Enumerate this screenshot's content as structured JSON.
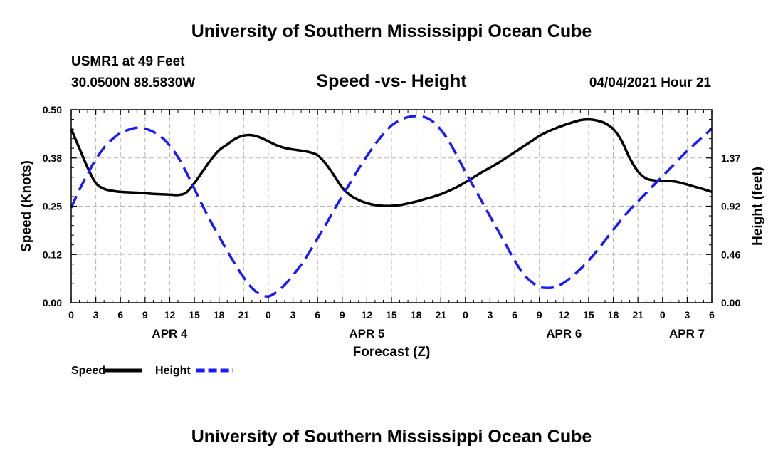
{
  "header": {
    "title": "University of Southern Mississippi Ocean Cube",
    "station": "USMR1 at 49 Feet",
    "coordinates": "30.0500N  88.5830W",
    "chart_title": "Speed -vs- Height",
    "datetime": "04/04/2021 Hour 21"
  },
  "footer": {
    "title": "University of Southern Mississippi Ocean Cube"
  },
  "chart_data": {
    "type": "line",
    "title": "Speed -vs- Height",
    "xlabel": "Forecast (Z)",
    "ylabel": "Speed (Knots)",
    "y2label": "Height (feet)",
    "x_range_hours": [
      0,
      78
    ],
    "ylim": [
      0,
      0.5
    ],
    "y2lim": [
      0,
      1.83
    ],
    "grid": true,
    "x_ticks": [
      {
        "hour": 0,
        "label": "0"
      },
      {
        "hour": 3,
        "label": "3"
      },
      {
        "hour": 6,
        "label": "6"
      },
      {
        "hour": 9,
        "label": "9"
      },
      {
        "hour": 12,
        "label": "12"
      },
      {
        "hour": 15,
        "label": "15"
      },
      {
        "hour": 18,
        "label": "18"
      },
      {
        "hour": 21,
        "label": "21"
      },
      {
        "hour": 24,
        "label": "0"
      },
      {
        "hour": 27,
        "label": "3"
      },
      {
        "hour": 30,
        "label": "6"
      },
      {
        "hour": 33,
        "label": "9"
      },
      {
        "hour": 36,
        "label": "12"
      },
      {
        "hour": 39,
        "label": "15"
      },
      {
        "hour": 42,
        "label": "18"
      },
      {
        "hour": 45,
        "label": "21"
      },
      {
        "hour": 48,
        "label": "0"
      },
      {
        "hour": 51,
        "label": "3"
      },
      {
        "hour": 54,
        "label": "6"
      },
      {
        "hour": 57,
        "label": "9"
      },
      {
        "hour": 60,
        "label": "12"
      },
      {
        "hour": 63,
        "label": "15"
      },
      {
        "hour": 66,
        "label": "18"
      },
      {
        "hour": 69,
        "label": "21"
      },
      {
        "hour": 72,
        "label": "0"
      },
      {
        "hour": 75,
        "label": "3"
      },
      {
        "hour": 78,
        "label": "6"
      }
    ],
    "date_labels": [
      {
        "hour": 12,
        "label": "APR 4"
      },
      {
        "hour": 36,
        "label": "APR 5"
      },
      {
        "hour": 60,
        "label": "APR 6"
      },
      {
        "hour": 78,
        "label": "APR 7"
      }
    ],
    "y_ticks": [
      {
        "value": 0.0,
        "label": "0.00"
      },
      {
        "value": 0.125,
        "label": "0.12"
      },
      {
        "value": 0.25,
        "label": "0.25"
      },
      {
        "value": 0.375,
        "label": "0.38"
      },
      {
        "value": 0.5,
        "label": "0.50"
      }
    ],
    "y2_ticks": [
      {
        "value": 0.0,
        "label": "0.00"
      },
      {
        "value": 0.4575,
        "label": "0.46"
      },
      {
        "value": 0.915,
        "label": "0.92"
      },
      {
        "value": 1.3725,
        "label": "1.37"
      }
    ],
    "series": [
      {
        "name": "Speed",
        "axis": "left",
        "color": "#000000",
        "dash": false,
        "points": [
          [
            0,
            0.45
          ],
          [
            1,
            0.4
          ],
          [
            2,
            0.35
          ],
          [
            3,
            0.31
          ],
          [
            4,
            0.295
          ],
          [
            5,
            0.29
          ],
          [
            6,
            0.287
          ],
          [
            8,
            0.285
          ],
          [
            10,
            0.282
          ],
          [
            12,
            0.28
          ],
          [
            13,
            0.279
          ],
          [
            14,
            0.285
          ],
          [
            15,
            0.31
          ],
          [
            16,
            0.34
          ],
          [
            17,
            0.37
          ],
          [
            18,
            0.395
          ],
          [
            19,
            0.41
          ],
          [
            20,
            0.425
          ],
          [
            21,
            0.433
          ],
          [
            22,
            0.434
          ],
          [
            23,
            0.428
          ],
          [
            24,
            0.418
          ],
          [
            25,
            0.408
          ],
          [
            26,
            0.401
          ],
          [
            27,
            0.397
          ],
          [
            28,
            0.394
          ],
          [
            29,
            0.39
          ],
          [
            30,
            0.382
          ],
          [
            31,
            0.36
          ],
          [
            32,
            0.33
          ],
          [
            33,
            0.298
          ],
          [
            34,
            0.278
          ],
          [
            35,
            0.266
          ],
          [
            36,
            0.258
          ],
          [
            37,
            0.253
          ],
          [
            38,
            0.251
          ],
          [
            39,
            0.251
          ],
          [
            40,
            0.253
          ],
          [
            41,
            0.257
          ],
          [
            42,
            0.262
          ],
          [
            43,
            0.268
          ],
          [
            44,
            0.274
          ],
          [
            45,
            0.281
          ],
          [
            46,
            0.29
          ],
          [
            47,
            0.3
          ],
          [
            48,
            0.312
          ],
          [
            49,
            0.325
          ],
          [
            50,
            0.338
          ],
          [
            51,
            0.35
          ],
          [
            52,
            0.362
          ],
          [
            53,
            0.376
          ],
          [
            54,
            0.39
          ],
          [
            55,
            0.404
          ],
          [
            56,
            0.418
          ],
          [
            57,
            0.432
          ],
          [
            58,
            0.443
          ],
          [
            59,
            0.452
          ],
          [
            60,
            0.46
          ],
          [
            61,
            0.467
          ],
          [
            62,
            0.473
          ],
          [
            63,
            0.475
          ],
          [
            64,
            0.472
          ],
          [
            65,
            0.465
          ],
          [
            66,
            0.45
          ],
          [
            67,
            0.42
          ],
          [
            68,
            0.375
          ],
          [
            69,
            0.34
          ],
          [
            70,
            0.322
          ],
          [
            71,
            0.317
          ],
          [
            72,
            0.316
          ],
          [
            73,
            0.315
          ],
          [
            74,
            0.312
          ],
          [
            75,
            0.306
          ],
          [
            76,
            0.3
          ],
          [
            77,
            0.294
          ],
          [
            78,
            0.287
          ]
        ]
      },
      {
        "name": "Height",
        "axis": "right",
        "color": "#1a1aff",
        "dash": true,
        "points": [
          [
            0,
            0.9
          ],
          [
            1,
            1.07
          ],
          [
            2,
            1.22
          ],
          [
            3,
            1.36
          ],
          [
            4,
            1.47
          ],
          [
            5,
            1.55
          ],
          [
            6,
            1.61
          ],
          [
            7,
            1.64
          ],
          [
            8,
            1.66
          ],
          [
            9,
            1.65
          ],
          [
            10,
            1.62
          ],
          [
            11,
            1.57
          ],
          [
            12,
            1.49
          ],
          [
            13,
            1.38
          ],
          [
            14,
            1.24
          ],
          [
            15,
            1.08
          ],
          [
            16,
            0.92
          ],
          [
            17,
            0.77
          ],
          [
            18,
            0.63
          ],
          [
            19,
            0.49
          ],
          [
            20,
            0.36
          ],
          [
            21,
            0.24
          ],
          [
            22,
            0.14
          ],
          [
            23,
            0.08
          ],
          [
            24,
            0.06
          ],
          [
            25,
            0.1
          ],
          [
            26,
            0.17
          ],
          [
            27,
            0.26
          ],
          [
            28,
            0.36
          ],
          [
            29,
            0.48
          ],
          [
            30,
            0.61
          ],
          [
            31,
            0.74
          ],
          [
            32,
            0.88
          ],
          [
            33,
            1.01
          ],
          [
            34,
            1.14
          ],
          [
            35,
            1.27
          ],
          [
            36,
            1.39
          ],
          [
            37,
            1.5
          ],
          [
            38,
            1.6
          ],
          [
            39,
            1.68
          ],
          [
            40,
            1.73
          ],
          [
            41,
            1.76
          ],
          [
            42,
            1.77
          ],
          [
            43,
            1.76
          ],
          [
            44,
            1.72
          ],
          [
            45,
            1.64
          ],
          [
            46,
            1.53
          ],
          [
            47,
            1.39
          ],
          [
            48,
            1.24
          ],
          [
            49,
            1.1
          ],
          [
            50,
            0.96
          ],
          [
            51,
            0.82
          ],
          [
            52,
            0.68
          ],
          [
            53,
            0.54
          ],
          [
            54,
            0.4
          ],
          [
            55,
            0.28
          ],
          [
            56,
            0.2
          ],
          [
            57,
            0.15
          ],
          [
            58,
            0.14
          ],
          [
            59,
            0.15
          ],
          [
            60,
            0.19
          ],
          [
            61,
            0.25
          ],
          [
            62,
            0.32
          ],
          [
            63,
            0.4
          ],
          [
            64,
            0.49
          ],
          [
            65,
            0.59
          ],
          [
            66,
            0.69
          ],
          [
            67,
            0.79
          ],
          [
            68,
            0.88
          ],
          [
            69,
            0.96
          ],
          [
            70,
            1.04
          ],
          [
            71,
            1.12
          ],
          [
            72,
            1.2
          ],
          [
            73,
            1.28
          ],
          [
            74,
            1.36
          ],
          [
            75,
            1.44
          ],
          [
            76,
            1.51
          ],
          [
            77,
            1.58
          ],
          [
            78,
            1.65
          ]
        ]
      }
    ],
    "legend": {
      "placement": "bottom-left",
      "items": [
        {
          "label": "Speed",
          "color": "#000000",
          "dash": false
        },
        {
          "label": "Height",
          "color": "#1a1aff",
          "dash": true
        }
      ]
    }
  }
}
